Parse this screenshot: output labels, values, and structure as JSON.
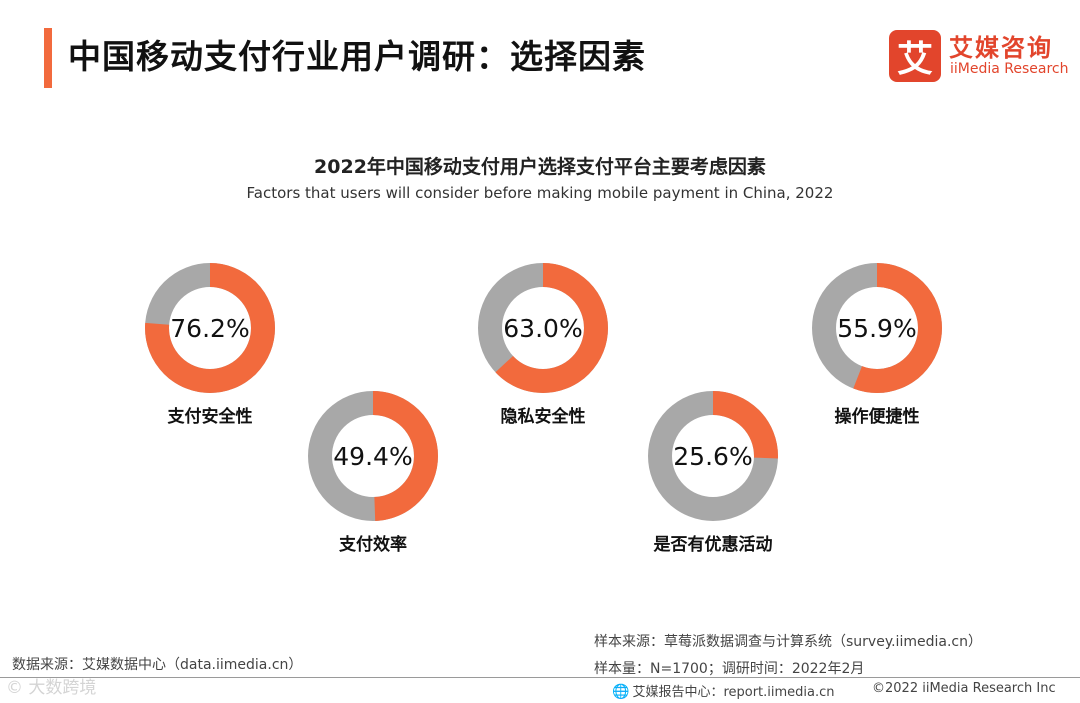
{
  "page_title": "中国移动支付行业用户调研：选择因素",
  "logo": {
    "mark": "艾",
    "cn": "艾媒咨询",
    "en": "iiMedia Research"
  },
  "colors": {
    "accent": "#f26a3d",
    "track": "#a8a8a8",
    "logo": "#e2452c"
  },
  "chart_data": {
    "type": "pie",
    "subtype": "donut",
    "title": "2022年中国移动支付用户选择支付平台主要考虑因素",
    "subtitle": "Factors that users will consider before making mobile payment in China, 2022",
    "unit": "%",
    "categories": [
      "支付安全性",
      "支付效率",
      "隐私安全性",
      "是否有优惠活动",
      "操作便捷性"
    ],
    "values": [
      76.2,
      49.4,
      63.0,
      25.6,
      55.9
    ],
    "value_labels": [
      "76.2%",
      "49.4%",
      "63.0%",
      "25.6%",
      "55.9%"
    ]
  },
  "footer": {
    "data_source": "数据来源：艾媒数据中心（data.iimedia.cn）",
    "sample_source": "样本来源：草莓派数据调查与计算系统（survey.iimedia.cn）",
    "sample_size": "样本量：N=1700；调研时间：2022年2月",
    "report_center": "艾媒报告中心：report.iimedia.cn",
    "copyright": "©2022 iiMedia Research Inc"
  },
  "watermark": "© 大数跨境"
}
